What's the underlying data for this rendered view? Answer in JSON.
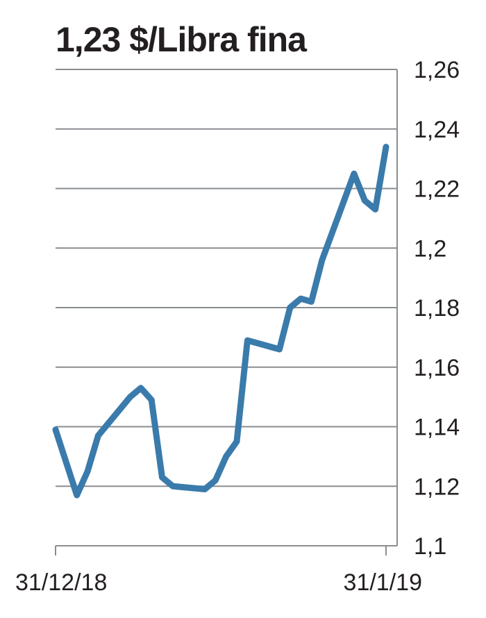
{
  "chart_data": {
    "type": "line",
    "title": "1,23 $/Libra fina",
    "xlabel": "",
    "ylabel": "",
    "ylim": [
      1.1,
      1.26
    ],
    "y_ticks": [
      "1,1",
      "1,12",
      "1,14",
      "1,16",
      "1,18",
      "1,2",
      "1,22",
      "1,24",
      "1,26"
    ],
    "y_tick_values": [
      1.1,
      1.12,
      1.14,
      1.16,
      1.18,
      1.2,
      1.22,
      1.24,
      1.26
    ],
    "x_start_label": "31/12/18",
    "x_end_label": "31/1/19",
    "xlim": [
      "2018-12-31",
      "2019-01-31"
    ],
    "grid": true,
    "y_axis_position": "right",
    "color": "#3a7bab",
    "series": [
      {
        "points": [
          [
            "2018-12-31",
            1.139
          ],
          [
            "2019-01-02",
            1.117
          ],
          [
            "2019-01-03",
            1.125
          ],
          [
            "2019-01-04",
            1.137
          ],
          [
            "2019-01-07",
            1.15
          ],
          [
            "2019-01-08",
            1.153
          ],
          [
            "2019-01-09",
            1.149
          ],
          [
            "2019-01-10",
            1.123
          ],
          [
            "2019-01-11",
            1.12
          ],
          [
            "2019-01-14",
            1.119
          ],
          [
            "2019-01-15",
            1.122
          ],
          [
            "2019-01-16",
            1.13
          ],
          [
            "2019-01-17",
            1.135
          ],
          [
            "2019-01-18",
            1.169
          ],
          [
            "2019-01-21",
            1.166
          ],
          [
            "2019-01-22",
            1.18
          ],
          [
            "2019-01-23",
            1.183
          ],
          [
            "2019-01-24",
            1.182
          ],
          [
            "2019-01-25",
            1.196
          ],
          [
            "2019-01-28",
            1.225
          ],
          [
            "2019-01-29",
            1.216
          ],
          [
            "2019-01-30",
            1.213
          ],
          [
            "2019-01-31",
            1.234
          ]
        ]
      }
    ]
  }
}
